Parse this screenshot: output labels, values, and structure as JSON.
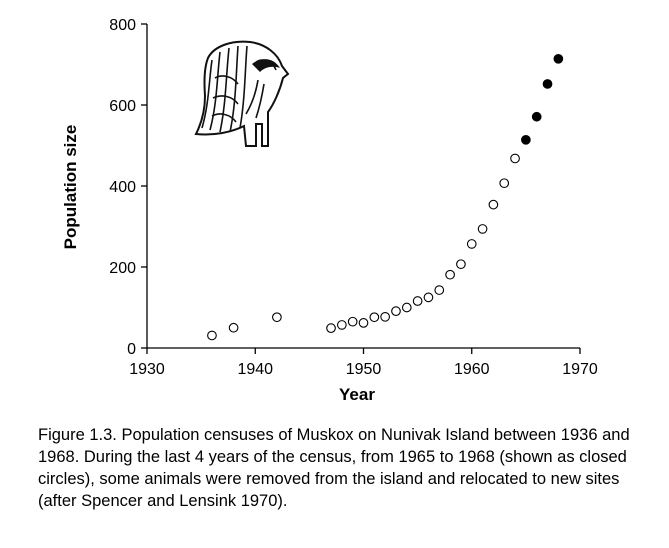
{
  "chart_data": {
    "type": "scatter",
    "title": "",
    "xlabel": "Year",
    "ylabel": "Population size",
    "xlim": [
      1930,
      1970
    ],
    "ylim": [
      0,
      800
    ],
    "xticks": [
      1930,
      1940,
      1950,
      1960,
      1970
    ],
    "yticks": [
      0,
      200,
      400,
      600,
      800
    ],
    "grid": false,
    "series": [
      {
        "marker": "open-circle",
        "points": [
          {
            "x": 1936,
            "y": 31
          },
          {
            "x": 1938,
            "y": 50
          },
          {
            "x": 1942,
            "y": 76
          },
          {
            "x": 1947,
            "y": 49
          },
          {
            "x": 1948,
            "y": 57
          },
          {
            "x": 1949,
            "y": 65
          },
          {
            "x": 1950,
            "y": 62
          },
          {
            "x": 1951,
            "y": 76
          },
          {
            "x": 1952,
            "y": 77
          },
          {
            "x": 1953,
            "y": 91
          },
          {
            "x": 1954,
            "y": 100
          },
          {
            "x": 1955,
            "y": 116
          },
          {
            "x": 1956,
            "y": 125
          },
          {
            "x": 1957,
            "y": 143
          },
          {
            "x": 1958,
            "y": 181
          },
          {
            "x": 1959,
            "y": 207
          },
          {
            "x": 1960,
            "y": 257
          },
          {
            "x": 1961,
            "y": 294
          },
          {
            "x": 1962,
            "y": 354
          },
          {
            "x": 1963,
            "y": 407
          },
          {
            "x": 1964,
            "y": 468
          }
        ]
      },
      {
        "marker": "closed-circle",
        "points": [
          {
            "x": 1965,
            "y": 514
          },
          {
            "x": 1966,
            "y": 571
          },
          {
            "x": 1967,
            "y": 652
          },
          {
            "x": 1968,
            "y": 714
          }
        ]
      }
    ]
  },
  "icons": {
    "illustration": "muskox-icon"
  },
  "caption": "Figure 1.3.   Population censuses of Muskox on Nunivak Island between 1936 and 1968.  During the last 4 years of the census, from 1965 to 1968 (shown as closed circles), some animals were removed from the island and relocated to new sites (after Spencer and Lensink 1970)."
}
